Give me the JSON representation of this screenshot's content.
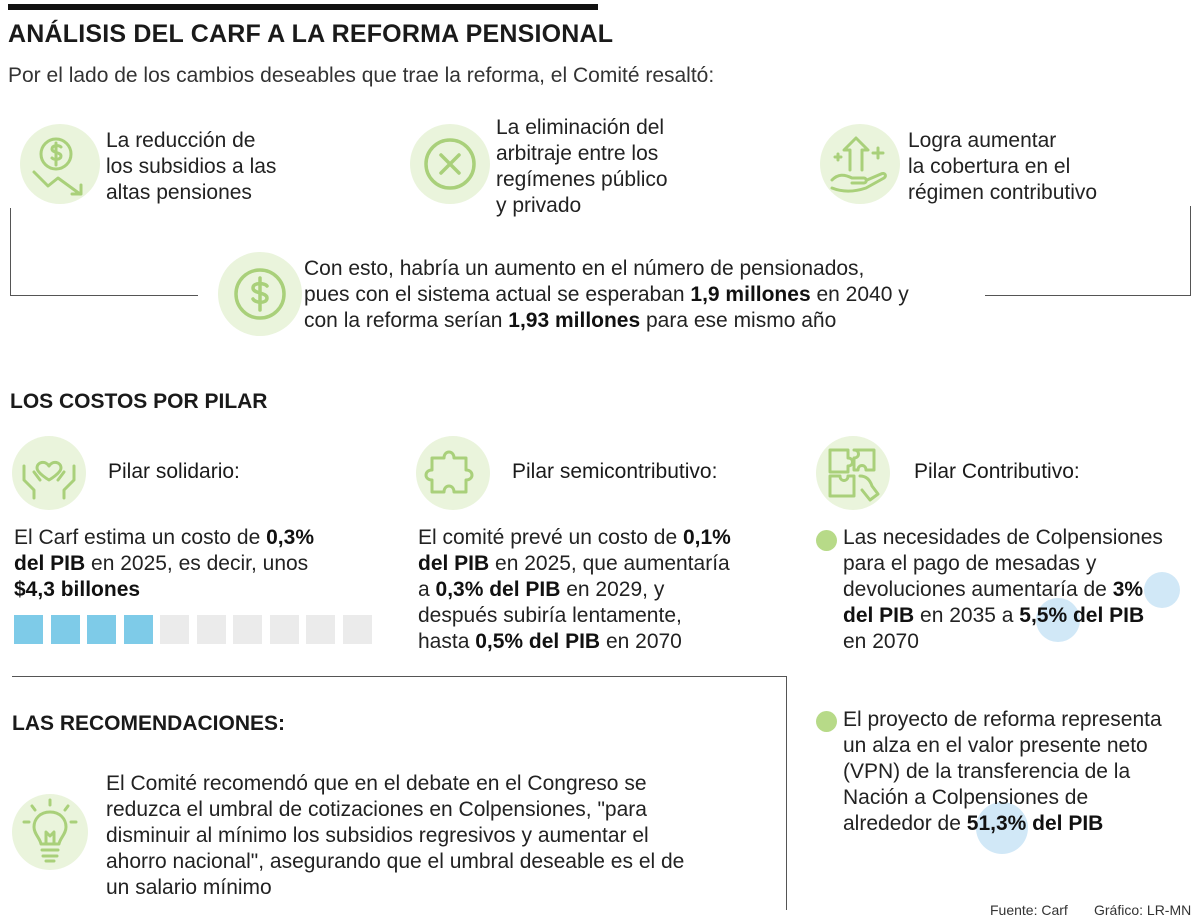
{
  "header": {
    "title": "ANÁLISIS DEL CARF A LA REFORMA PENSIONAL",
    "subtitle": "Por el lado de los cambios deseables que trae la reforma, el Comité resaltó:"
  },
  "changes": [
    {
      "icon": "dollar-down-icon",
      "lines": [
        "La reducción de",
        "los subsidios a las",
        "altas pensiones"
      ]
    },
    {
      "icon": "x-circle-icon",
      "lines": [
        "La eliminación del",
        "arbitraje entre los",
        "regímenes público",
        "y privado"
      ]
    },
    {
      "icon": "hand-growth-icon",
      "lines": [
        "Logra aumentar",
        "la cobertura en el",
        "régimen contributivo"
      ]
    }
  ],
  "result": {
    "icon": "dollar-coin-icon",
    "line1": "Con esto, habría un aumento en el número de pensionados,",
    "line2_pre": "pues con el sistema actual se esperaban ",
    "line2_bold": "1,9 millones",
    "line2_post": " en 2040 y",
    "line3_pre": "con la reforma serían ",
    "line3_bold": "1,93 millones",
    "line3_post": " para ese mismo año"
  },
  "costs": {
    "heading": "LOS COSTOS POR PILAR",
    "solidario": {
      "icon": "hands-heart-icon",
      "title": "Pilar solidario:",
      "l1_pre": "El Carf estima un costo de ",
      "l1_bold": "0,3%",
      "l2_bold": "del PIB",
      "l2_post": " en 2025, es decir, unos",
      "l3_bold": "$4,3 billones",
      "gauge": {
        "filled": 4,
        "total": 10,
        "fill_color": "#7ecbe8",
        "empty_color": "#ebebeb"
      }
    },
    "semicontributivo": {
      "icon": "puzzle-icon",
      "title": "Pilar semicontributivo:",
      "l1_pre": "El comité prevé un costo de ",
      "l1_bold": "0,1%",
      "l2_bold": "del PIB",
      "l2_post": " en 2025, que aumentaría",
      "l3_pre": "a ",
      "l3_bold": "0,3% del PIB",
      "l3_post": " en 2029, y",
      "l4": "después subiría lentamente,",
      "l5_pre": "hasta ",
      "l5_bold": "0,5% del PIB",
      "l5_post": " en 2070"
    },
    "contributivo": {
      "icon": "puzzle-hand-icon",
      "title": "Pilar Contributivo:",
      "b1_l1": "Las necesidades de Colpensiones",
      "b1_l2": "para el pago de mesadas y",
      "b1_l3_pre": "devoluciones aumentaría de ",
      "b1_l3_bold": "3%",
      "b1_l4_bold1": "del PIB",
      "b1_l4_mid": " en 2035 a ",
      "b1_l4_bold2": "5,5% del PIB",
      "b1_l5": "en 2070",
      "b2_l1": "El proyecto de reforma representa",
      "b2_l2": "un alza en el valor presente neto",
      "b2_l3": "(VPN) de la transferencia de la",
      "b2_l4": "Nación a Colpensiones de",
      "b2_l5_pre": "alrededor de ",
      "b2_l5_bold": "51,3% del PIB"
    }
  },
  "recommendations": {
    "heading": "LAS RECOMENDACIONES:",
    "icon": "lightbulb-icon",
    "lines": [
      "El Comité recomendó que en el debate en el Congreso se",
      "reduzca el umbral de cotizaciones en Colpensiones, \"para",
      "disminuir al mínimo los subsidios regresivos y aumentar el",
      "ahorro nacional\", asegurando que el umbral deseable es el de",
      "un salario mínimo"
    ]
  },
  "footer": {
    "source": "Fuente: Carf",
    "graphic": "Gráfico: LR-MN"
  },
  "colors": {
    "icon_bg": "#eaf4dc",
    "icon_stroke": "#a9d07a",
    "bullet": "#b7da88",
    "highlight": "#d1e8f7"
  }
}
